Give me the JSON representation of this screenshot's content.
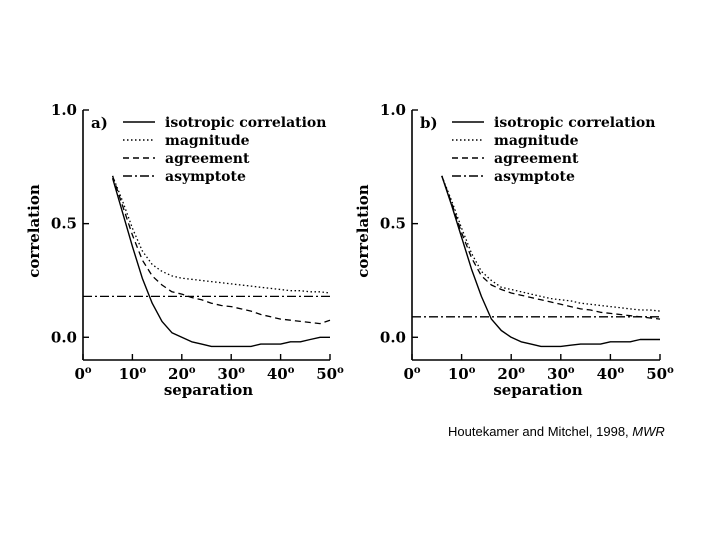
{
  "chart_data": [
    {
      "type": "line",
      "panel_label": "a)",
      "xlabel": "separation",
      "ylabel": "correlation",
      "xlim": [
        0,
        50
      ],
      "ylim": [
        -0.1,
        1.0
      ],
      "x_ticks": [
        0,
        10,
        20,
        30,
        40,
        50
      ],
      "x_tick_labels": [
        "0",
        "10",
        "20",
        "30",
        "40",
        "50"
      ],
      "degree_marker": "o",
      "y_ticks": [
        0.0,
        0.5,
        1.0
      ],
      "y_tick_labels": [
        "0.0",
        "0.5",
        "1.0"
      ],
      "grid": false,
      "legend_position": "top-right",
      "series": [
        {
          "name": "isotropic correlation",
          "style": "solid",
          "x": [
            6,
            8,
            10,
            12,
            14,
            16,
            18,
            20,
            22,
            24,
            26,
            28,
            30,
            32,
            34,
            36,
            38,
            40,
            42,
            44,
            46,
            48,
            50
          ],
          "y": [
            0.7,
            0.55,
            0.4,
            0.26,
            0.15,
            0.07,
            0.02,
            0.0,
            -0.02,
            -0.03,
            -0.04,
            -0.04,
            -0.04,
            -0.04,
            -0.04,
            -0.03,
            -0.03,
            -0.03,
            -0.02,
            -0.02,
            -0.01,
            0.0,
            0.0
          ]
        },
        {
          "name": "magnitude",
          "style": "dotted",
          "x": [
            6,
            8,
            10,
            12,
            14,
            16,
            18,
            20,
            22,
            24,
            26,
            28,
            30,
            32,
            34,
            36,
            38,
            40,
            42,
            44,
            46,
            48,
            50
          ],
          "y": [
            0.71,
            0.6,
            0.48,
            0.38,
            0.32,
            0.29,
            0.27,
            0.26,
            0.255,
            0.25,
            0.245,
            0.24,
            0.235,
            0.23,
            0.225,
            0.22,
            0.215,
            0.21,
            0.205,
            0.205,
            0.2,
            0.2,
            0.195
          ]
        },
        {
          "name": "agreement",
          "style": "dashed",
          "x": [
            6,
            8,
            10,
            12,
            14,
            16,
            18,
            20,
            22,
            24,
            26,
            28,
            30,
            32,
            34,
            36,
            38,
            40,
            42,
            44,
            46,
            48,
            50
          ],
          "y": [
            0.71,
            0.58,
            0.45,
            0.34,
            0.27,
            0.23,
            0.2,
            0.19,
            0.175,
            0.165,
            0.15,
            0.14,
            0.135,
            0.125,
            0.115,
            0.1,
            0.09,
            0.08,
            0.075,
            0.07,
            0.065,
            0.06,
            0.075
          ]
        },
        {
          "name": "asymptote",
          "style": "dashdot",
          "x": [
            0,
            50
          ],
          "y": [
            0.18,
            0.18
          ]
        }
      ]
    },
    {
      "type": "line",
      "panel_label": "b)",
      "xlabel": "separation",
      "ylabel": "correlation",
      "xlim": [
        0,
        50
      ],
      "ylim": [
        -0.1,
        1.0
      ],
      "x_ticks": [
        0,
        10,
        20,
        30,
        40,
        50
      ],
      "x_tick_labels": [
        "0",
        "10",
        "20",
        "30",
        "40",
        "50"
      ],
      "degree_marker": "o",
      "y_ticks": [
        0.0,
        0.5,
        1.0
      ],
      "y_tick_labels": [
        "0.0",
        "0.5",
        "1.0"
      ],
      "grid": false,
      "legend_position": "top-right",
      "series": [
        {
          "name": "isotropic correlation",
          "style": "solid",
          "x": [
            6,
            8,
            10,
            12,
            14,
            16,
            18,
            20,
            22,
            24,
            26,
            28,
            30,
            32,
            34,
            36,
            38,
            40,
            42,
            44,
            46,
            48,
            50
          ],
          "y": [
            0.71,
            0.58,
            0.44,
            0.3,
            0.18,
            0.08,
            0.03,
            0.0,
            -0.02,
            -0.03,
            -0.04,
            -0.04,
            -0.04,
            -0.035,
            -0.03,
            -0.03,
            -0.03,
            -0.02,
            -0.02,
            -0.02,
            -0.01,
            -0.01,
            -0.01
          ]
        },
        {
          "name": "magnitude",
          "style": "dotted",
          "x": [
            6,
            8,
            10,
            12,
            14,
            16,
            18,
            20,
            22,
            24,
            26,
            28,
            30,
            32,
            34,
            36,
            38,
            40,
            42,
            44,
            46,
            48,
            50
          ],
          "y": [
            0.71,
            0.6,
            0.48,
            0.37,
            0.29,
            0.25,
            0.22,
            0.21,
            0.2,
            0.19,
            0.18,
            0.17,
            0.165,
            0.16,
            0.15,
            0.145,
            0.14,
            0.135,
            0.13,
            0.125,
            0.12,
            0.12,
            0.115
          ]
        },
        {
          "name": "agreement",
          "style": "dashed",
          "x": [
            6,
            8,
            10,
            12,
            14,
            16,
            18,
            20,
            22,
            24,
            26,
            28,
            30,
            32,
            34,
            36,
            38,
            40,
            42,
            44,
            46,
            48,
            50
          ],
          "y": [
            0.71,
            0.59,
            0.46,
            0.35,
            0.27,
            0.23,
            0.21,
            0.195,
            0.185,
            0.175,
            0.165,
            0.155,
            0.145,
            0.135,
            0.125,
            0.12,
            0.11,
            0.105,
            0.1,
            0.095,
            0.09,
            0.085,
            0.08
          ]
        },
        {
          "name": "asymptote",
          "style": "dashdot",
          "x": [
            0,
            50
          ],
          "y": [
            0.09,
            0.09
          ]
        }
      ]
    }
  ],
  "citation": {
    "text": "Houtekamer and Mitchel, 1998, ",
    "journal": "MWR"
  }
}
